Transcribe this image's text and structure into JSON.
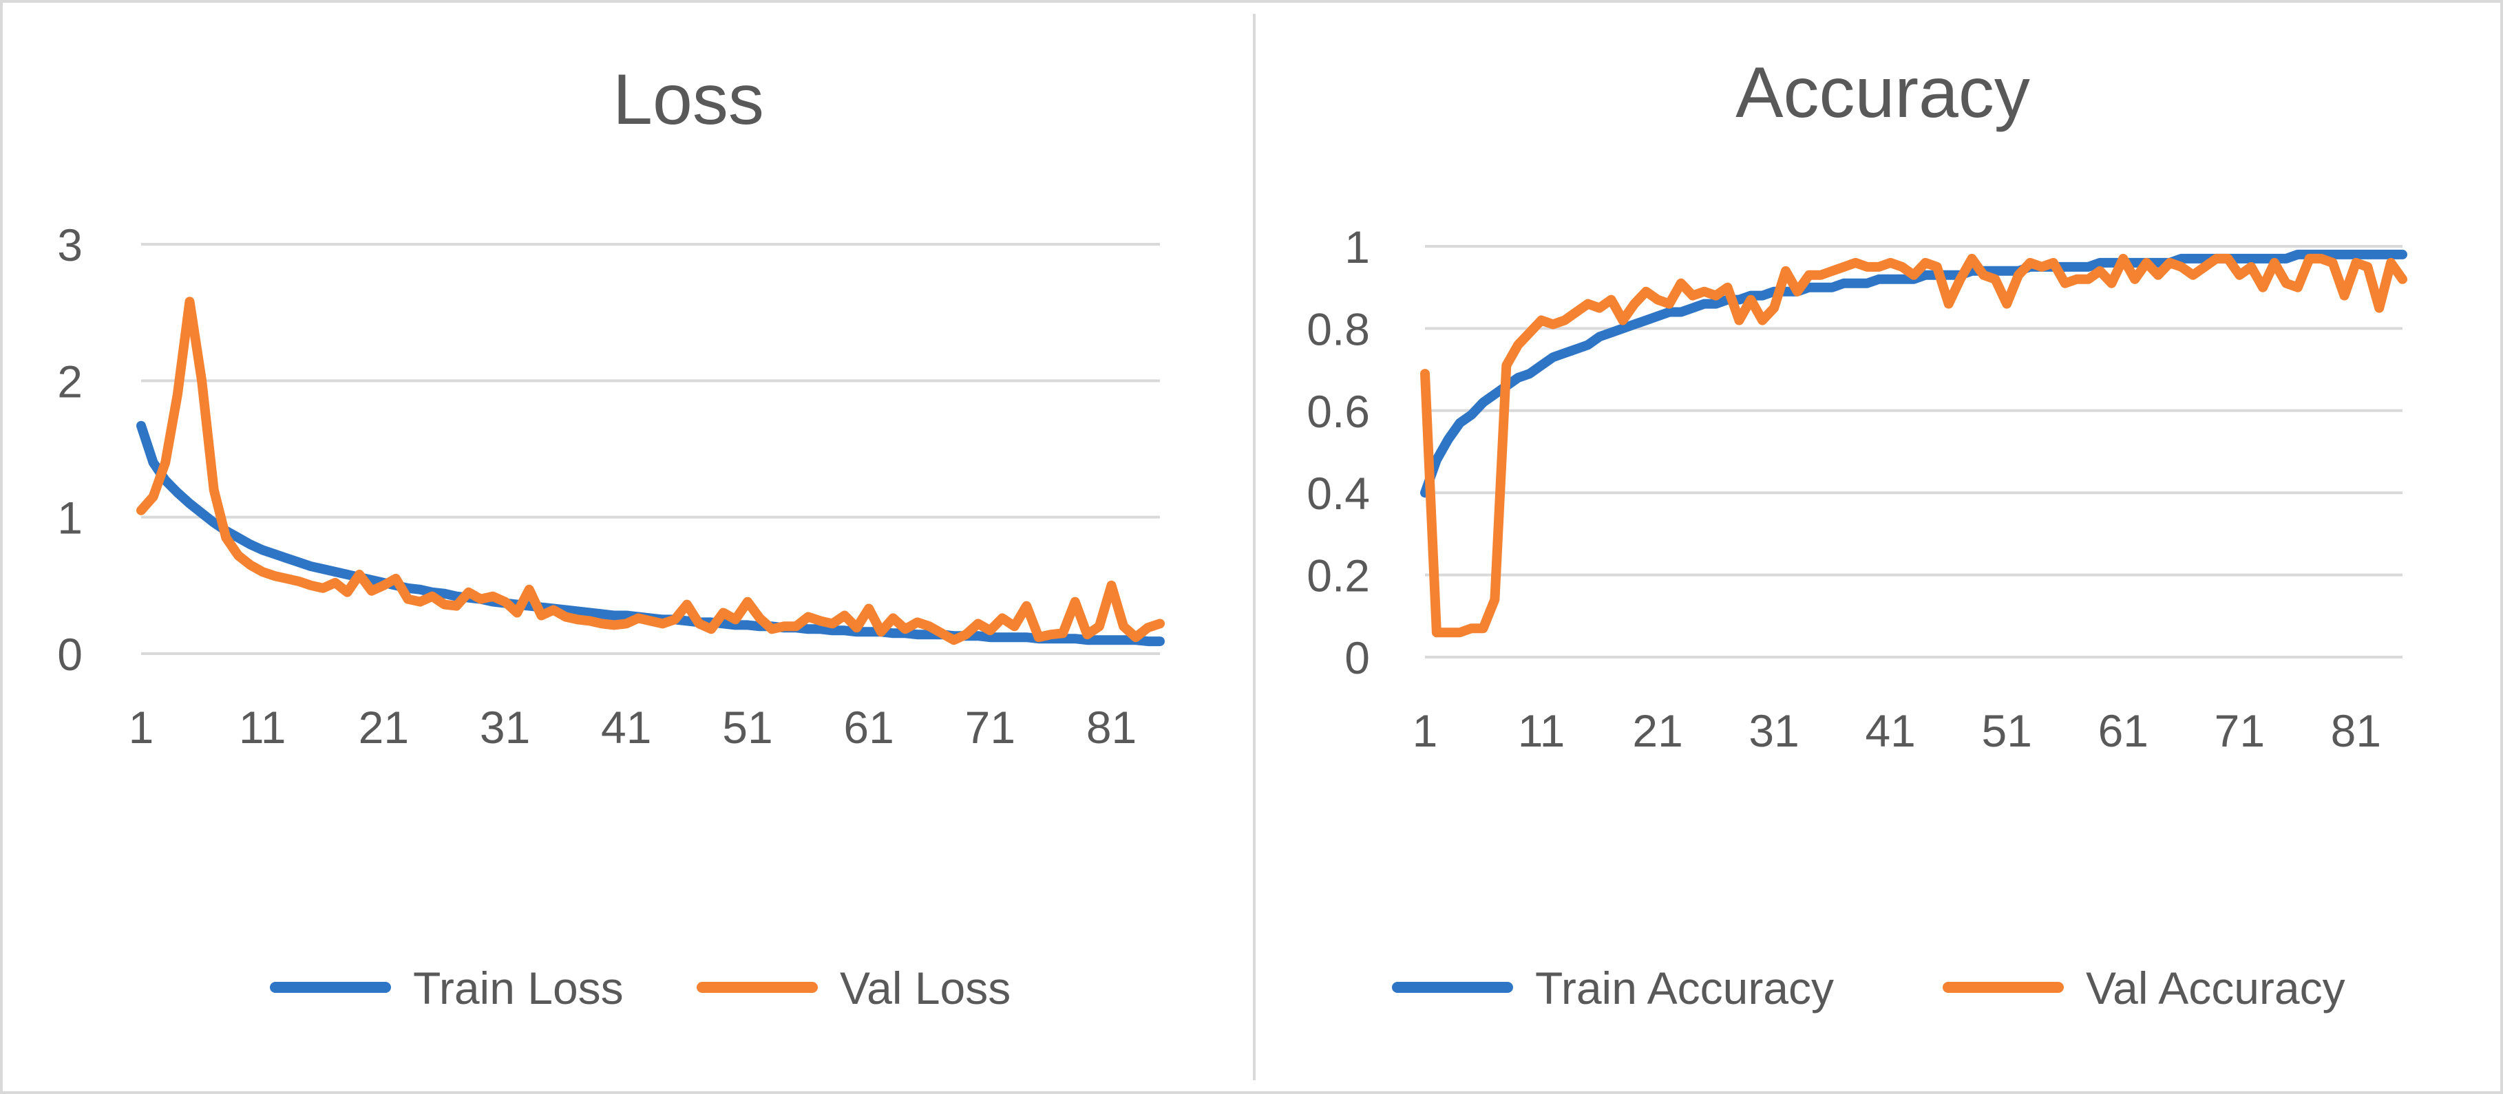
{
  "colors": {
    "train": "#2E75C6",
    "val": "#F58231",
    "grid": "#d9d9d9",
    "text": "#595959"
  },
  "chart_data": [
    {
      "type": "line",
      "title": "Loss",
      "xlabel": "",
      "ylabel": "",
      "xlim": [
        1,
        85
      ],
      "ylim": [
        0,
        3
      ],
      "yticks": [
        "0",
        "1",
        "2",
        "3"
      ],
      "xticks": [
        "1",
        "11",
        "21",
        "31",
        "41",
        "51",
        "61",
        "71",
        "81"
      ],
      "legend_position": "bottom-center",
      "series": [
        {
          "name": "Train Loss",
          "color_key": "train",
          "values": [
            1.67,
            1.4,
            1.27,
            1.18,
            1.1,
            1.03,
            0.96,
            0.9,
            0.85,
            0.8,
            0.76,
            0.73,
            0.7,
            0.67,
            0.64,
            0.62,
            0.6,
            0.58,
            0.56,
            0.54,
            0.52,
            0.5,
            0.48,
            0.47,
            0.45,
            0.44,
            0.42,
            0.41,
            0.4,
            0.38,
            0.37,
            0.36,
            0.35,
            0.34,
            0.33,
            0.32,
            0.31,
            0.3,
            0.29,
            0.28,
            0.28,
            0.27,
            0.26,
            0.25,
            0.25,
            0.24,
            0.23,
            0.23,
            0.22,
            0.21,
            0.21,
            0.2,
            0.2,
            0.19,
            0.19,
            0.18,
            0.18,
            0.17,
            0.17,
            0.16,
            0.16,
            0.16,
            0.15,
            0.15,
            0.14,
            0.14,
            0.14,
            0.13,
            0.13,
            0.13,
            0.12,
            0.12,
            0.12,
            0.12,
            0.11,
            0.11,
            0.11,
            0.11,
            0.1,
            0.1,
            0.1,
            0.1,
            0.1,
            0.09,
            0.09
          ]
        },
        {
          "name": "Val Loss",
          "color_key": "val",
          "values": [
            1.05,
            1.15,
            1.4,
            1.9,
            2.58,
            2.0,
            1.2,
            0.85,
            0.72,
            0.65,
            0.6,
            0.57,
            0.55,
            0.53,
            0.5,
            0.48,
            0.52,
            0.45,
            0.58,
            0.46,
            0.5,
            0.55,
            0.4,
            0.38,
            0.42,
            0.36,
            0.35,
            0.45,
            0.4,
            0.42,
            0.38,
            0.3,
            0.47,
            0.28,
            0.32,
            0.27,
            0.25,
            0.24,
            0.22,
            0.21,
            0.22,
            0.26,
            0.24,
            0.22,
            0.25,
            0.36,
            0.22,
            0.18,
            0.3,
            0.25,
            0.38,
            0.26,
            0.18,
            0.2,
            0.2,
            0.27,
            0.24,
            0.22,
            0.28,
            0.19,
            0.33,
            0.16,
            0.26,
            0.18,
            0.23,
            0.2,
            0.15,
            0.1,
            0.14,
            0.22,
            0.17,
            0.26,
            0.2,
            0.35,
            0.12,
            0.14,
            0.15,
            0.38,
            0.14,
            0.2,
            0.5,
            0.2,
            0.12,
            0.19,
            0.22
          ]
        }
      ]
    },
    {
      "type": "line",
      "title": "Accuracy",
      "xlabel": "",
      "ylabel": "",
      "xlim": [
        1,
        85
      ],
      "ylim": [
        0,
        1
      ],
      "yticks": [
        "0",
        "0.2",
        "0.4",
        "0.6",
        "0.8",
        "1"
      ],
      "xticks": [
        "1",
        "11",
        "21",
        "31",
        "41",
        "51",
        "61",
        "71",
        "81"
      ],
      "legend_position": "bottom-center",
      "series": [
        {
          "name": "Train Accuracy",
          "color_key": "train",
          "values": [
            0.4,
            0.48,
            0.53,
            0.57,
            0.59,
            0.62,
            0.64,
            0.66,
            0.68,
            0.69,
            0.71,
            0.73,
            0.74,
            0.75,
            0.76,
            0.78,
            0.79,
            0.8,
            0.81,
            0.82,
            0.83,
            0.84,
            0.84,
            0.85,
            0.86,
            0.86,
            0.87,
            0.87,
            0.88,
            0.88,
            0.89,
            0.89,
            0.89,
            0.9,
            0.9,
            0.9,
            0.91,
            0.91,
            0.91,
            0.92,
            0.92,
            0.92,
            0.92,
            0.93,
            0.93,
            0.93,
            0.93,
            0.94,
            0.94,
            0.94,
            0.94,
            0.94,
            0.95,
            0.95,
            0.95,
            0.95,
            0.95,
            0.95,
            0.96,
            0.96,
            0.96,
            0.96,
            0.96,
            0.96,
            0.96,
            0.97,
            0.97,
            0.97,
            0.97,
            0.97,
            0.97,
            0.97,
            0.97,
            0.97,
            0.97,
            0.98,
            0.98,
            0.98,
            0.98,
            0.98,
            0.98,
            0.98,
            0.98,
            0.98,
            0.98
          ]
        },
        {
          "name": "Val Accuracy",
          "color_key": "val",
          "values": [
            0.69,
            0.06,
            0.06,
            0.06,
            0.07,
            0.07,
            0.14,
            0.71,
            0.76,
            0.79,
            0.82,
            0.81,
            0.82,
            0.84,
            0.86,
            0.85,
            0.87,
            0.82,
            0.86,
            0.89,
            0.87,
            0.86,
            0.91,
            0.88,
            0.89,
            0.88,
            0.9,
            0.82,
            0.87,
            0.82,
            0.85,
            0.94,
            0.89,
            0.93,
            0.93,
            0.94,
            0.95,
            0.96,
            0.95,
            0.95,
            0.96,
            0.95,
            0.93,
            0.96,
            0.95,
            0.86,
            0.92,
            0.97,
            0.93,
            0.92,
            0.86,
            0.93,
            0.96,
            0.95,
            0.96,
            0.91,
            0.92,
            0.92,
            0.94,
            0.91,
            0.97,
            0.92,
            0.96,
            0.93,
            0.96,
            0.95,
            0.93,
            0.95,
            0.97,
            0.97,
            0.93,
            0.95,
            0.9,
            0.96,
            0.91,
            0.9,
            0.97,
            0.97,
            0.96,
            0.88,
            0.96,
            0.95,
            0.85,
            0.96,
            0.92
          ]
        }
      ]
    }
  ]
}
